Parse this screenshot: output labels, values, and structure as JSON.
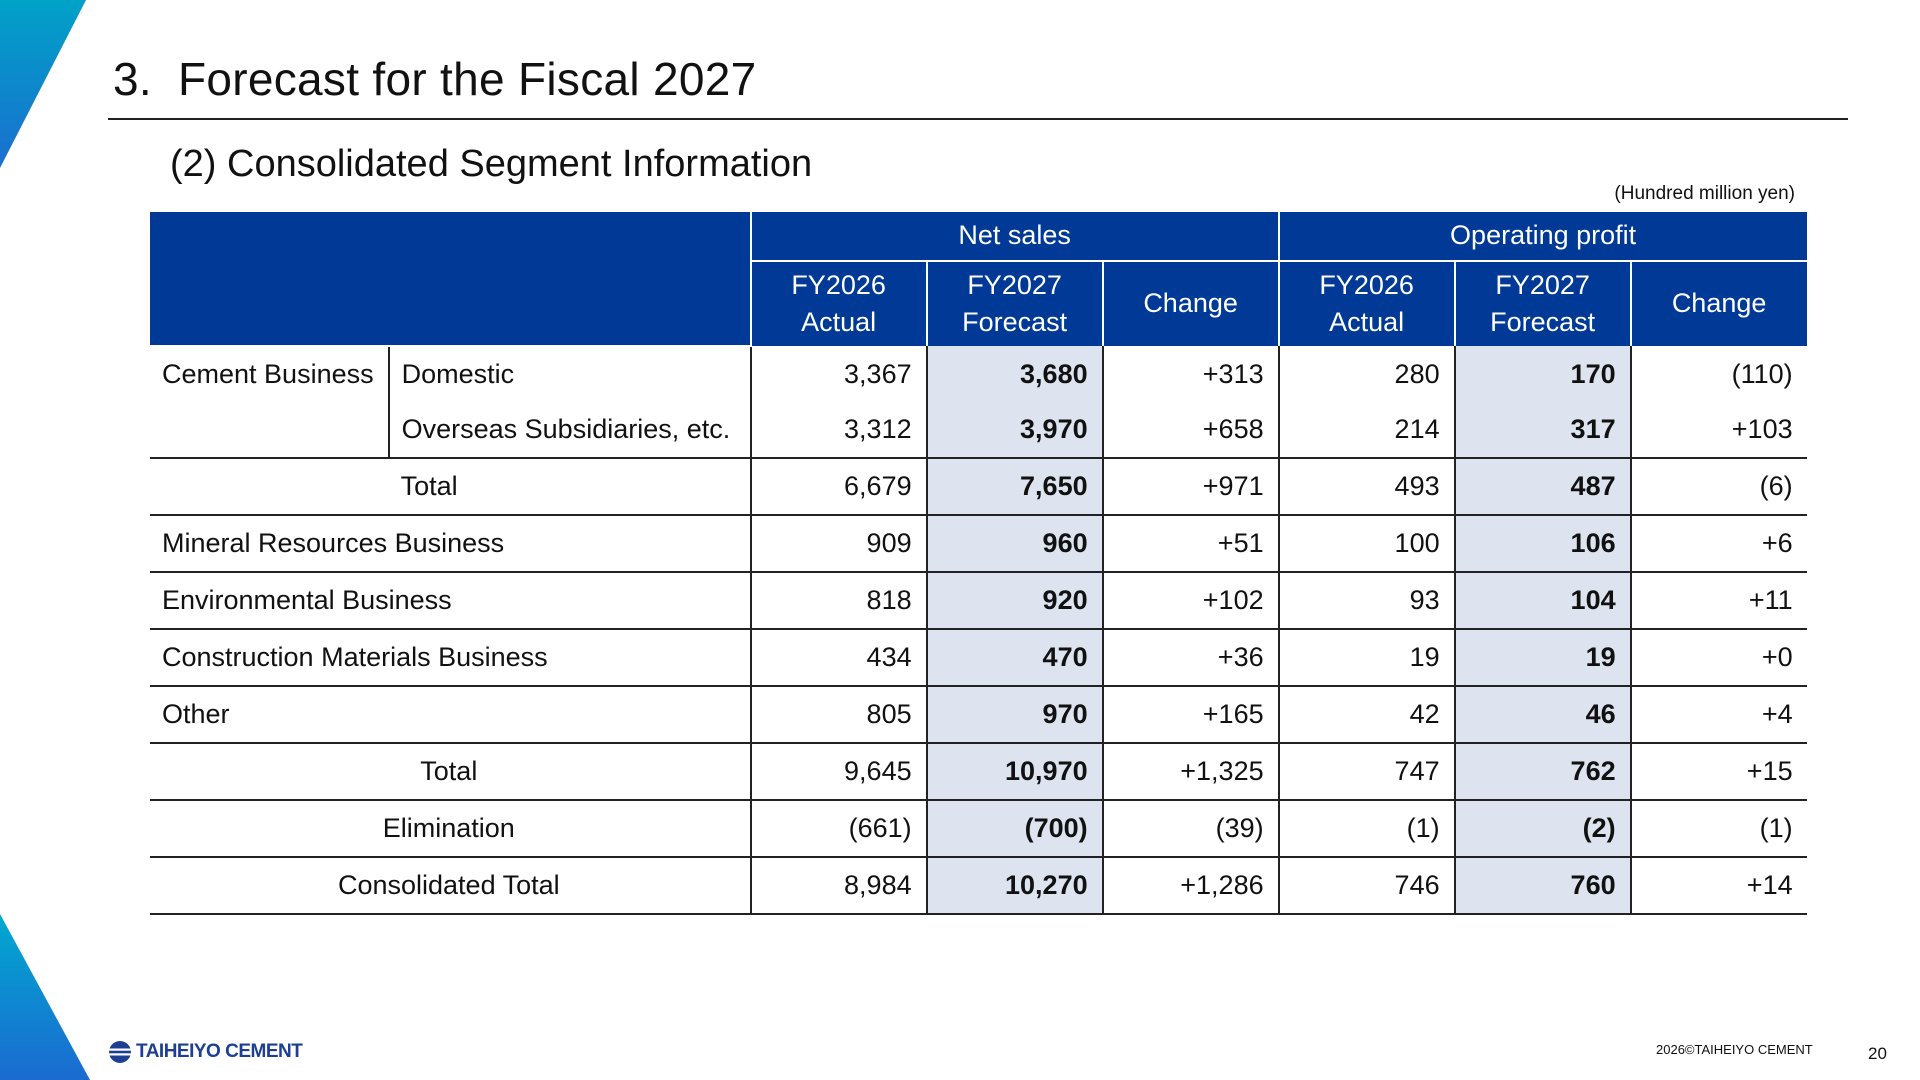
{
  "title": {
    "number": "3.",
    "text": "Forecast for the Fiscal 2027"
  },
  "subtitle": "(2) Consolidated Segment Information",
  "unit_note": "(Hundred million yen)",
  "colors": {
    "header_bg": "#003a96",
    "highlight_col": "#dde4ef",
    "accent_blue": "#1c3f94"
  },
  "table": {
    "groups": {
      "net_sales": "Net sales",
      "operating_profit": "Operating profit"
    },
    "subheaders": {
      "fy2026": {
        "line1": "FY2026",
        "line2": "Actual"
      },
      "fy2027": {
        "line1": "FY2027",
        "line2": "Forecast"
      },
      "change": "Change"
    },
    "rows": [
      {
        "label": "Cement Business",
        "sublabel": "Domestic",
        "values": [
          "3,367",
          "3,680",
          "+313",
          "280",
          "170",
          "(110)"
        ]
      },
      {
        "label": "",
        "sublabel": "Overseas Subsidiaries, etc.",
        "values": [
          "3,312",
          "3,970",
          "+658",
          "214",
          "317",
          "+103"
        ]
      },
      {
        "label": "",
        "sublabel": "Total",
        "values": [
          "6,679",
          "7,650",
          "+971",
          "493",
          "487",
          "(6)"
        ]
      },
      {
        "label": "Mineral Resources Business",
        "values": [
          "909",
          "960",
          "+51",
          "100",
          "106",
          "+6"
        ]
      },
      {
        "label": "Environmental Business",
        "values": [
          "818",
          "920",
          "+102",
          "93",
          "104",
          "+11"
        ]
      },
      {
        "label": "Construction Materials Business",
        "values": [
          "434",
          "470",
          "+36",
          "19",
          "19",
          "+0"
        ]
      },
      {
        "label": "Other",
        "values": [
          "805",
          "970",
          "+165",
          "42",
          "46",
          "+4"
        ]
      },
      {
        "label": "Total",
        "values": [
          "9,645",
          "10,970",
          "+1,325",
          "747",
          "762",
          "+15"
        ]
      },
      {
        "label": "Elimination",
        "values": [
          "(661)",
          "(700)",
          "(39)",
          "(1)",
          "(2)",
          "(1)"
        ]
      },
      {
        "label": "Consolidated Total",
        "values": [
          "8,984",
          "10,270",
          "+1,286",
          "746",
          "760",
          "+14"
        ]
      }
    ]
  },
  "footer": {
    "logo_text": "TAIHEIYO CEMENT",
    "logo_icon": "taiheiyo-globe-logo",
    "copyright": "2026©TAIHEIYO CEMENT",
    "page_number": "20"
  }
}
